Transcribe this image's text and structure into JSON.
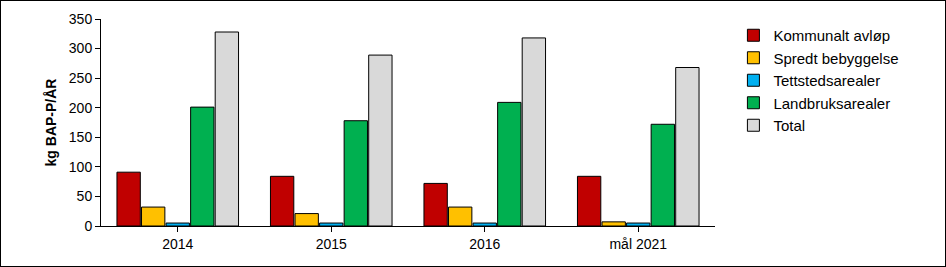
{
  "chart_data": {
    "type": "bar",
    "y_label": "kg BAP-P/ÅR",
    "categories": [
      "2014",
      "2015",
      "2016",
      "mål 2021"
    ],
    "series": [
      {
        "name": "Kommunalt avløp",
        "color": "#C00000",
        "values": [
          91,
          84,
          72,
          84
        ]
      },
      {
        "name": "Spredt bebyggelse",
        "color": "#FFC000",
        "values": [
          32,
          21,
          32,
          7
        ]
      },
      {
        "name": "Tettstedsarealer",
        "color": "#00B0F0",
        "values": [
          5,
          5,
          5,
          5
        ]
      },
      {
        "name": "Landbruksarealer",
        "color": "#00B050",
        "values": [
          201,
          178,
          209,
          172
        ]
      },
      {
        "name": "Total",
        "color": "#D9D9D9",
        "values": [
          328,
          289,
          318,
          268
        ]
      }
    ],
    "ylim": [
      0,
      350
    ],
    "yticks": [
      0,
      50,
      100,
      150,
      200,
      250,
      300,
      350
    ],
    "grid": false,
    "legend": "right"
  }
}
